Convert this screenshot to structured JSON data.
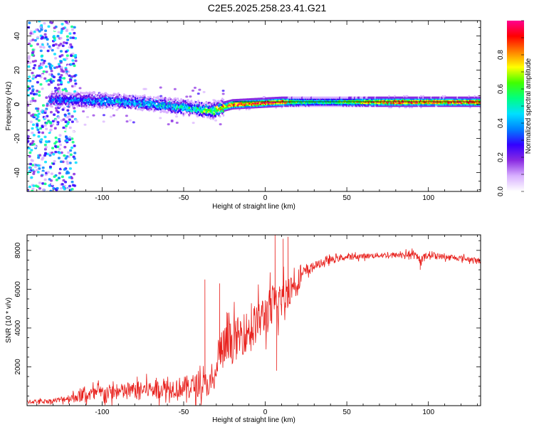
{
  "title": "C2E5.2025.258.23.41.G21",
  "chart_data": [
    {
      "type": "heatmap",
      "panel": "spectrogram",
      "xlabel": "Height of straight line (km)",
      "ylabel": "Frequency (Hz)",
      "xlim": [
        -146,
        132
      ],
      "ylim": [
        -51,
        49
      ],
      "xticks": [
        -100,
        -50,
        0,
        50,
        100
      ],
      "yticks": [
        -40,
        -20,
        0,
        20,
        40
      ],
      "colorbar": {
        "label": "Normalized spectral amplitude",
        "range": [
          0,
          1
        ],
        "ticks": [
          0.0,
          0.2,
          0.4,
          0.6,
          0.8
        ],
        "colormap": [
          "#ffffff",
          "#d8b0ff",
          "#8a2be2",
          "#3300ff",
          "#0080ff",
          "#00e0ff",
          "#00ff80",
          "#40ff00",
          "#ffff00",
          "#ff8000",
          "#ff0000",
          "#ff0090"
        ]
      },
      "ridge": {
        "x": [
          -130,
          -110,
          -90,
          -70,
          -55,
          -45,
          -38,
          -32,
          -28,
          -20,
          -10,
          0,
          10,
          20,
          40,
          60,
          80,
          100,
          120,
          132
        ],
        "frequency": [
          3,
          2.5,
          2,
          0.5,
          -1,
          -2,
          -3,
          -3.5,
          -2,
          0,
          0.5,
          1,
          1.5,
          1.5,
          1.5,
          1.5,
          1.5,
          1.5,
          1.5,
          1.5
        ],
        "amplitude": [
          0.35,
          0.4,
          0.45,
          0.45,
          0.5,
          0.55,
          0.6,
          0.7,
          0.8,
          0.9,
          0.9,
          0.92,
          0.9,
          0.6,
          0.55,
          0.75,
          0.95,
          0.85,
          0.9,
          0.9
        ]
      },
      "noise_region": {
        "x_from": -146,
        "x_to": -116,
        "frequency_range": [
          -51,
          49
        ]
      }
    },
    {
      "type": "line",
      "panel": "snr",
      "xlabel": "Height of straight line (km)",
      "ylabel": "SNR (10 * v/v)",
      "xlim": [
        -146,
        132
      ],
      "ylim": [
        0,
        8800
      ],
      "xticks": [
        -100,
        -50,
        0,
        50,
        100
      ],
      "yticks": [
        2000,
        4000,
        6000,
        8000
      ],
      "color": "#e8201c",
      "series": [
        {
          "name": "SNR",
          "x": [
            -146,
            -130,
            -120,
            -110,
            -100,
            -90,
            -80,
            -70,
            -60,
            -50,
            -45,
            -40,
            -35,
            -31,
            -29,
            -25,
            -20,
            -15,
            -10,
            -5,
            0,
            5,
            10,
            15,
            20,
            25,
            30,
            40,
            50,
            60,
            70,
            80,
            90,
            95,
            100,
            110,
            120,
            132
          ],
          "baseline": [
            200,
            250,
            400,
            550,
            650,
            700,
            800,
            850,
            900,
            950,
            1000,
            1050,
            1100,
            1200,
            2600,
            3000,
            3300,
            3600,
            3900,
            4300,
            4700,
            5100,
            5500,
            6000,
            6500,
            6900,
            7200,
            7500,
            7650,
            7700,
            7750,
            7750,
            7800,
            7500,
            7800,
            7650,
            7600,
            7450
          ],
          "jitter": [
            150,
            150,
            300,
            500,
            600,
            600,
            600,
            650,
            700,
            800,
            900,
            900,
            900,
            900,
            1500,
            1600,
            1600,
            1500,
            1500,
            1500,
            1600,
            1600,
            1500,
            1200,
            800,
            500,
            300,
            250,
            200,
            200,
            200,
            200,
            250,
            250,
            250,
            200,
            200,
            200
          ]
        }
      ],
      "spikes": [
        {
          "x": 6,
          "value": 8800
        },
        {
          "x": 7,
          "value": 1800
        },
        {
          "x": 11,
          "value": 8600
        },
        {
          "x": 14,
          "value": 8700
        },
        {
          "x": -37,
          "value": 6500
        },
        {
          "x": 95,
          "value": 7000
        },
        {
          "x": -28,
          "value": 6300
        }
      ]
    }
  ]
}
